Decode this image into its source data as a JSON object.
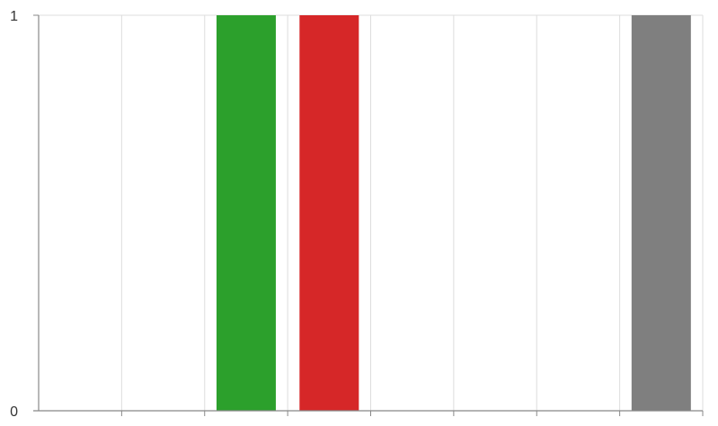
{
  "chart_data": {
    "type": "bar",
    "title": "",
    "xlabel": "",
    "ylabel": "",
    "ylim": [
      0,
      1
    ],
    "y_ticks": [
      "0",
      "1"
    ],
    "x_slots": 8,
    "grid": true,
    "bars": [
      {
        "slot": 2,
        "value": 1,
        "color": "#2ca02c"
      },
      {
        "slot": 3,
        "value": 1,
        "color": "#d62728"
      },
      {
        "slot": 7,
        "value": 1,
        "color": "#7f7f7f"
      }
    ]
  }
}
